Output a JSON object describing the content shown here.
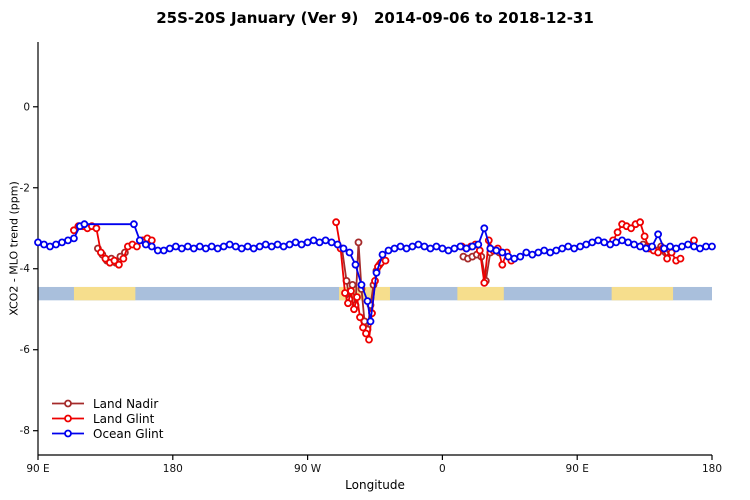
{
  "chart_data": {
    "type": "line",
    "title": "25S-20S January (Ver 9)   2014-09-06 to 2018-12-31",
    "xlabel": "Longitude",
    "ylabel": "XCO2 - MLO trend (ppm)",
    "x_axis_wrap": "axis runs eastward: 90E -> 180 -> 90W -> 0 -> 90E -> 180 (x measured in degrees east of 90E, 0..450)",
    "xlim": [
      0,
      450
    ],
    "ylim": [
      -8.6,
      1.6
    ],
    "grid": false,
    "legend_position": "bottom-left",
    "x_ticks": [
      {
        "value": 0,
        "label": "90 E"
      },
      {
        "value": 90,
        "label": "180"
      },
      {
        "value": 180,
        "label": "90 W"
      },
      {
        "value": 270,
        "label": "0"
      },
      {
        "value": 360,
        "label": "90 E"
      },
      {
        "value": 450,
        "label": "180"
      }
    ],
    "y_ticks": [
      {
        "value": 0,
        "label": "0"
      },
      {
        "value": -2,
        "label": "-2"
      },
      {
        "value": -4,
        "label": "-4"
      },
      {
        "value": -6,
        "label": "-6"
      },
      {
        "value": -8,
        "label": "-8"
      }
    ],
    "map_band": {
      "description": "land/ocean strip along longitude",
      "y_top": -4.45,
      "y_bottom": -4.78,
      "ocean_color": "#A9BFDC",
      "land_color": "#F6DE8D",
      "land_segments": [
        [
          24,
          65
        ],
        [
          201,
          235
        ],
        [
          280,
          311
        ],
        [
          383,
          424
        ]
      ]
    },
    "series": [
      {
        "name": "Land Nadir",
        "color": "#A52A2A",
        "marker": "open-circle",
        "segments": [
          [
            [
              40,
              -3.5
            ],
            [
              43,
              -3.65
            ],
            [
              46,
              -3.8
            ],
            [
              49,
              -3.75
            ],
            [
              52,
              -3.85
            ],
            [
              55,
              -3.7
            ],
            [
              58,
              -3.6
            ]
          ],
          [
            [
              203,
              -3.5
            ],
            [
              206,
              -4.3
            ],
            [
              208,
              -4.75
            ],
            [
              210,
              -4.4
            ],
            [
              212,
              -4.9
            ],
            [
              214,
              -3.35
            ],
            [
              216,
              -4.5
            ],
            [
              218,
              -5.3
            ],
            [
              220,
              -5.5
            ],
            [
              222,
              -4.9
            ],
            [
              224,
              -4.4
            ],
            [
              226,
              -4.05
            ],
            [
              228,
              -3.9
            ]
          ],
          [
            [
              284,
              -3.7
            ],
            [
              287,
              -3.75
            ],
            [
              290,
              -3.7
            ],
            [
              293,
              -3.65
            ],
            [
              296,
              -3.7
            ],
            [
              299,
              -4.3
            ],
            [
              302,
              -3.6
            ],
            [
              305,
              -3.55
            ],
            [
              308,
              -3.6
            ]
          ],
          [
            [
              404,
              -3.4
            ],
            [
              407,
              -3.45
            ],
            [
              410,
              -3.5
            ],
            [
              413,
              -3.55
            ],
            [
              416,
              -3.45
            ],
            [
              419,
              -3.6
            ],
            [
              422,
              -3.55
            ]
          ]
        ]
      },
      {
        "name": "Land Glint",
        "color": "#EE0000",
        "marker": "open-circle",
        "segments": [
          [
            [
              24,
              -3.05
            ],
            [
              27,
              -2.95
            ],
            [
              30,
              -2.95
            ],
            [
              33,
              -3.0
            ],
            [
              36,
              -2.95
            ],
            [
              39,
              -3.0
            ],
            [
              42,
              -3.6
            ],
            [
              45,
              -3.75
            ],
            [
              48,
              -3.85
            ],
            [
              51,
              -3.8
            ],
            [
              54,
              -3.9
            ],
            [
              57,
              -3.75
            ],
            [
              60,
              -3.45
            ],
            [
              63,
              -3.4
            ],
            [
              66,
              -3.45
            ],
            [
              70,
              -3.3
            ],
            [
              73,
              -3.25
            ],
            [
              76,
              -3.3
            ]
          ],
          [
            [
              199,
              -2.85
            ],
            [
              202,
              -3.5
            ],
            [
              205,
              -4.6
            ],
            [
              207,
              -4.85
            ],
            [
              209,
              -4.55
            ],
            [
              211,
              -5.0
            ],
            [
              213,
              -4.7
            ],
            [
              215,
              -5.2
            ],
            [
              217,
              -5.45
            ],
            [
              219,
              -5.6
            ],
            [
              221,
              -5.75
            ],
            [
              223,
              -5.1
            ],
            [
              225,
              -4.3
            ],
            [
              227,
              -3.95
            ],
            [
              229,
              -3.85
            ],
            [
              232,
              -3.8
            ]
          ],
          [
            [
              283,
              -3.45
            ],
            [
              286,
              -3.5
            ],
            [
              289,
              -3.45
            ],
            [
              292,
              -3.4
            ],
            [
              295,
              -3.55
            ],
            [
              298,
              -4.35
            ],
            [
              301,
              -3.3
            ],
            [
              304,
              -3.55
            ],
            [
              307,
              -3.5
            ],
            [
              310,
              -3.9
            ],
            [
              313,
              -3.6
            ],
            [
              316,
              -3.8
            ]
          ],
          [
            [
              384,
              -3.3
            ],
            [
              387,
              -3.1
            ],
            [
              390,
              -2.9
            ],
            [
              393,
              -2.95
            ],
            [
              396,
              -3.0
            ],
            [
              399,
              -2.9
            ],
            [
              402,
              -2.85
            ],
            [
              405,
              -3.2
            ],
            [
              408,
              -3.5
            ],
            [
              411,
              -3.55
            ],
            [
              414,
              -3.6
            ],
            [
              417,
              -3.5
            ],
            [
              420,
              -3.75
            ],
            [
              423,
              -3.6
            ],
            [
              426,
              -3.8
            ],
            [
              429,
              -3.75
            ]
          ],
          [
            [
              438,
              -3.3
            ]
          ]
        ]
      },
      {
        "name": "Ocean Glint",
        "color": "#0000EE",
        "marker": "open-circle",
        "segments": [
          [
            [
              0,
              -3.35
            ],
            [
              4,
              -3.4
            ],
            [
              8,
              -3.45
            ],
            [
              12,
              -3.4
            ],
            [
              16,
              -3.35
            ],
            [
              20,
              -3.3
            ],
            [
              24,
              -3.25
            ],
            [
              28,
              -2.95
            ],
            [
              31,
              -2.9
            ],
            [
              64,
              -2.9
            ],
            [
              68,
              -3.3
            ],
            [
              72,
              -3.4
            ],
            [
              76,
              -3.45
            ],
            [
              80,
              -3.55
            ],
            [
              84,
              -3.55
            ],
            [
              88,
              -3.5
            ],
            [
              92,
              -3.45
            ],
            [
              96,
              -3.5
            ],
            [
              100,
              -3.45
            ],
            [
              104,
              -3.5
            ],
            [
              108,
              -3.45
            ],
            [
              112,
              -3.5
            ],
            [
              116,
              -3.45
            ],
            [
              120,
              -3.5
            ],
            [
              124,
              -3.45
            ],
            [
              128,
              -3.4
            ],
            [
              132,
              -3.45
            ],
            [
              136,
              -3.5
            ],
            [
              140,
              -3.45
            ],
            [
              144,
              -3.5
            ],
            [
              148,
              -3.45
            ],
            [
              152,
              -3.4
            ],
            [
              156,
              -3.45
            ],
            [
              160,
              -3.4
            ],
            [
              164,
              -3.45
            ],
            [
              168,
              -3.4
            ],
            [
              172,
              -3.35
            ],
            [
              176,
              -3.4
            ],
            [
              180,
              -3.35
            ],
            [
              184,
              -3.3
            ],
            [
              188,
              -3.35
            ],
            [
              192,
              -3.3
            ],
            [
              196,
              -3.35
            ],
            [
              200,
              -3.4
            ],
            [
              204,
              -3.5
            ],
            [
              208,
              -3.6
            ],
            [
              212,
              -3.9
            ],
            [
              216,
              -4.4
            ],
            [
              220,
              -4.8
            ],
            [
              222,
              -5.3
            ],
            [
              226,
              -4.1
            ],
            [
              230,
              -3.65
            ],
            [
              234,
              -3.55
            ],
            [
              238,
              -3.5
            ],
            [
              242,
              -3.45
            ],
            [
              246,
              -3.5
            ],
            [
              250,
              -3.45
            ],
            [
              254,
              -3.4
            ],
            [
              258,
              -3.45
            ],
            [
              262,
              -3.5
            ],
            [
              266,
              -3.45
            ],
            [
              270,
              -3.5
            ],
            [
              274,
              -3.55
            ],
            [
              278,
              -3.5
            ],
            [
              282,
              -3.45
            ],
            [
              286,
              -3.5
            ],
            [
              290,
              -3.45
            ],
            [
              294,
              -3.4
            ],
            [
              298,
              -3.0
            ],
            [
              302,
              -3.5
            ],
            [
              306,
              -3.55
            ],
            [
              310,
              -3.6
            ],
            [
              314,
              -3.7
            ],
            [
              318,
              -3.75
            ],
            [
              322,
              -3.7
            ],
            [
              326,
              -3.6
            ],
            [
              330,
              -3.65
            ],
            [
              334,
              -3.6
            ],
            [
              338,
              -3.55
            ],
            [
              342,
              -3.6
            ],
            [
              346,
              -3.55
            ],
            [
              350,
              -3.5
            ],
            [
              354,
              -3.45
            ],
            [
              358,
              -3.5
            ],
            [
              362,
              -3.45
            ],
            [
              366,
              -3.4
            ],
            [
              370,
              -3.35
            ],
            [
              374,
              -3.3
            ],
            [
              378,
              -3.35
            ],
            [
              382,
              -3.4
            ],
            [
              386,
              -3.35
            ],
            [
              390,
              -3.3
            ],
            [
              394,
              -3.35
            ],
            [
              398,
              -3.4
            ],
            [
              402,
              -3.45
            ],
            [
              406,
              -3.5
            ],
            [
              410,
              -3.45
            ],
            [
              414,
              -3.15
            ],
            [
              418,
              -3.5
            ],
            [
              422,
              -3.45
            ],
            [
              426,
              -3.5
            ],
            [
              430,
              -3.45
            ],
            [
              434,
              -3.4
            ],
            [
              438,
              -3.45
            ],
            [
              442,
              -3.5
            ],
            [
              446,
              -3.45
            ],
            [
              450,
              -3.45
            ]
          ]
        ]
      }
    ]
  }
}
